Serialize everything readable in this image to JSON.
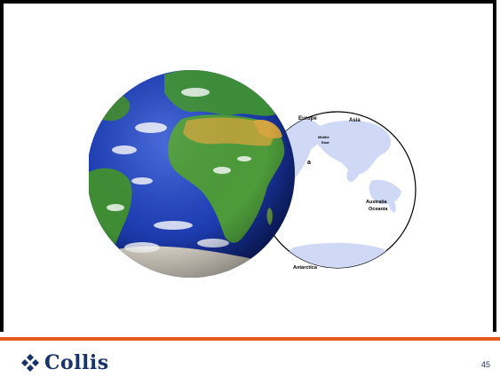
{
  "slide": {
    "page_number": "45"
  },
  "brand": {
    "name": "Collis",
    "accent_color": "#e55a1c",
    "logo_color": "#18336b"
  },
  "figure": {
    "labels": {
      "europe": "Europe",
      "asia": "Asia",
      "middle": "Middle",
      "east": "East",
      "africa_fragment": "a",
      "australia": "Australia",
      "oceania": "Oceania",
      "antarctica": "Antarctica"
    }
  }
}
